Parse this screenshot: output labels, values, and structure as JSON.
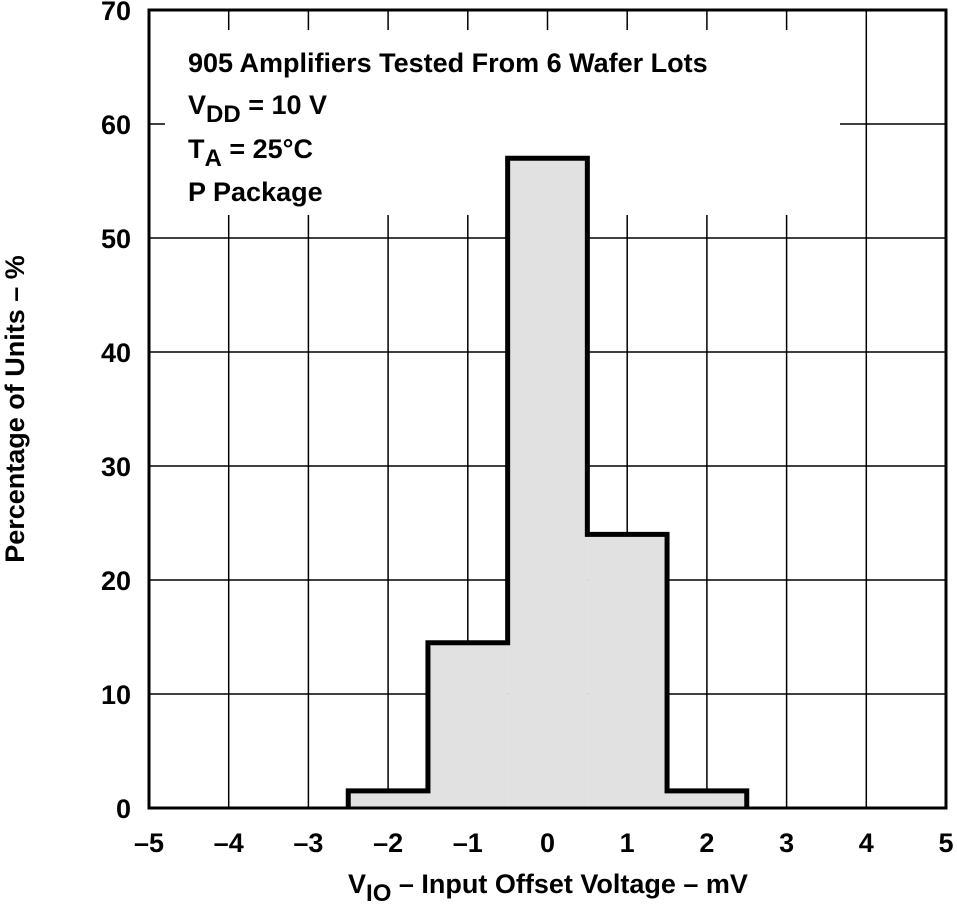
{
  "chart_data": {
    "type": "bar",
    "subtype": "histogram",
    "xlabel_main": "V",
    "xlabel_sub": "IO",
    "xlabel_rest": " – Input Offset Voltage – mV",
    "ylabel": "Percentage of Units – %",
    "xlim": [
      -5,
      5
    ],
    "ylim": [
      0,
      70
    ],
    "xticks": [
      "–5",
      "–4",
      "–3",
      "–2",
      "–1",
      "0",
      "1",
      "2",
      "3",
      "4",
      "5"
    ],
    "yticks": [
      "0",
      "10",
      "20",
      "30",
      "40",
      "50",
      "60",
      "70"
    ],
    "grid": true,
    "bin_edges": [
      -2.5,
      -1.5,
      -0.5,
      0.5,
      1.5,
      2.5
    ],
    "values": [
      1.5,
      14.5,
      57,
      24,
      1.5
    ],
    "fill_color": "#e1e1e1",
    "annotation": {
      "line1": "905 Amplifiers Tested From 6 Wafer Lots",
      "line2_main": "V",
      "line2_sub": "DD",
      "line2_rest": " = 10 V",
      "line3_main": "T",
      "line3_sub": "A",
      "line3_rest": " = 25°C",
      "line4": "P Package"
    }
  }
}
